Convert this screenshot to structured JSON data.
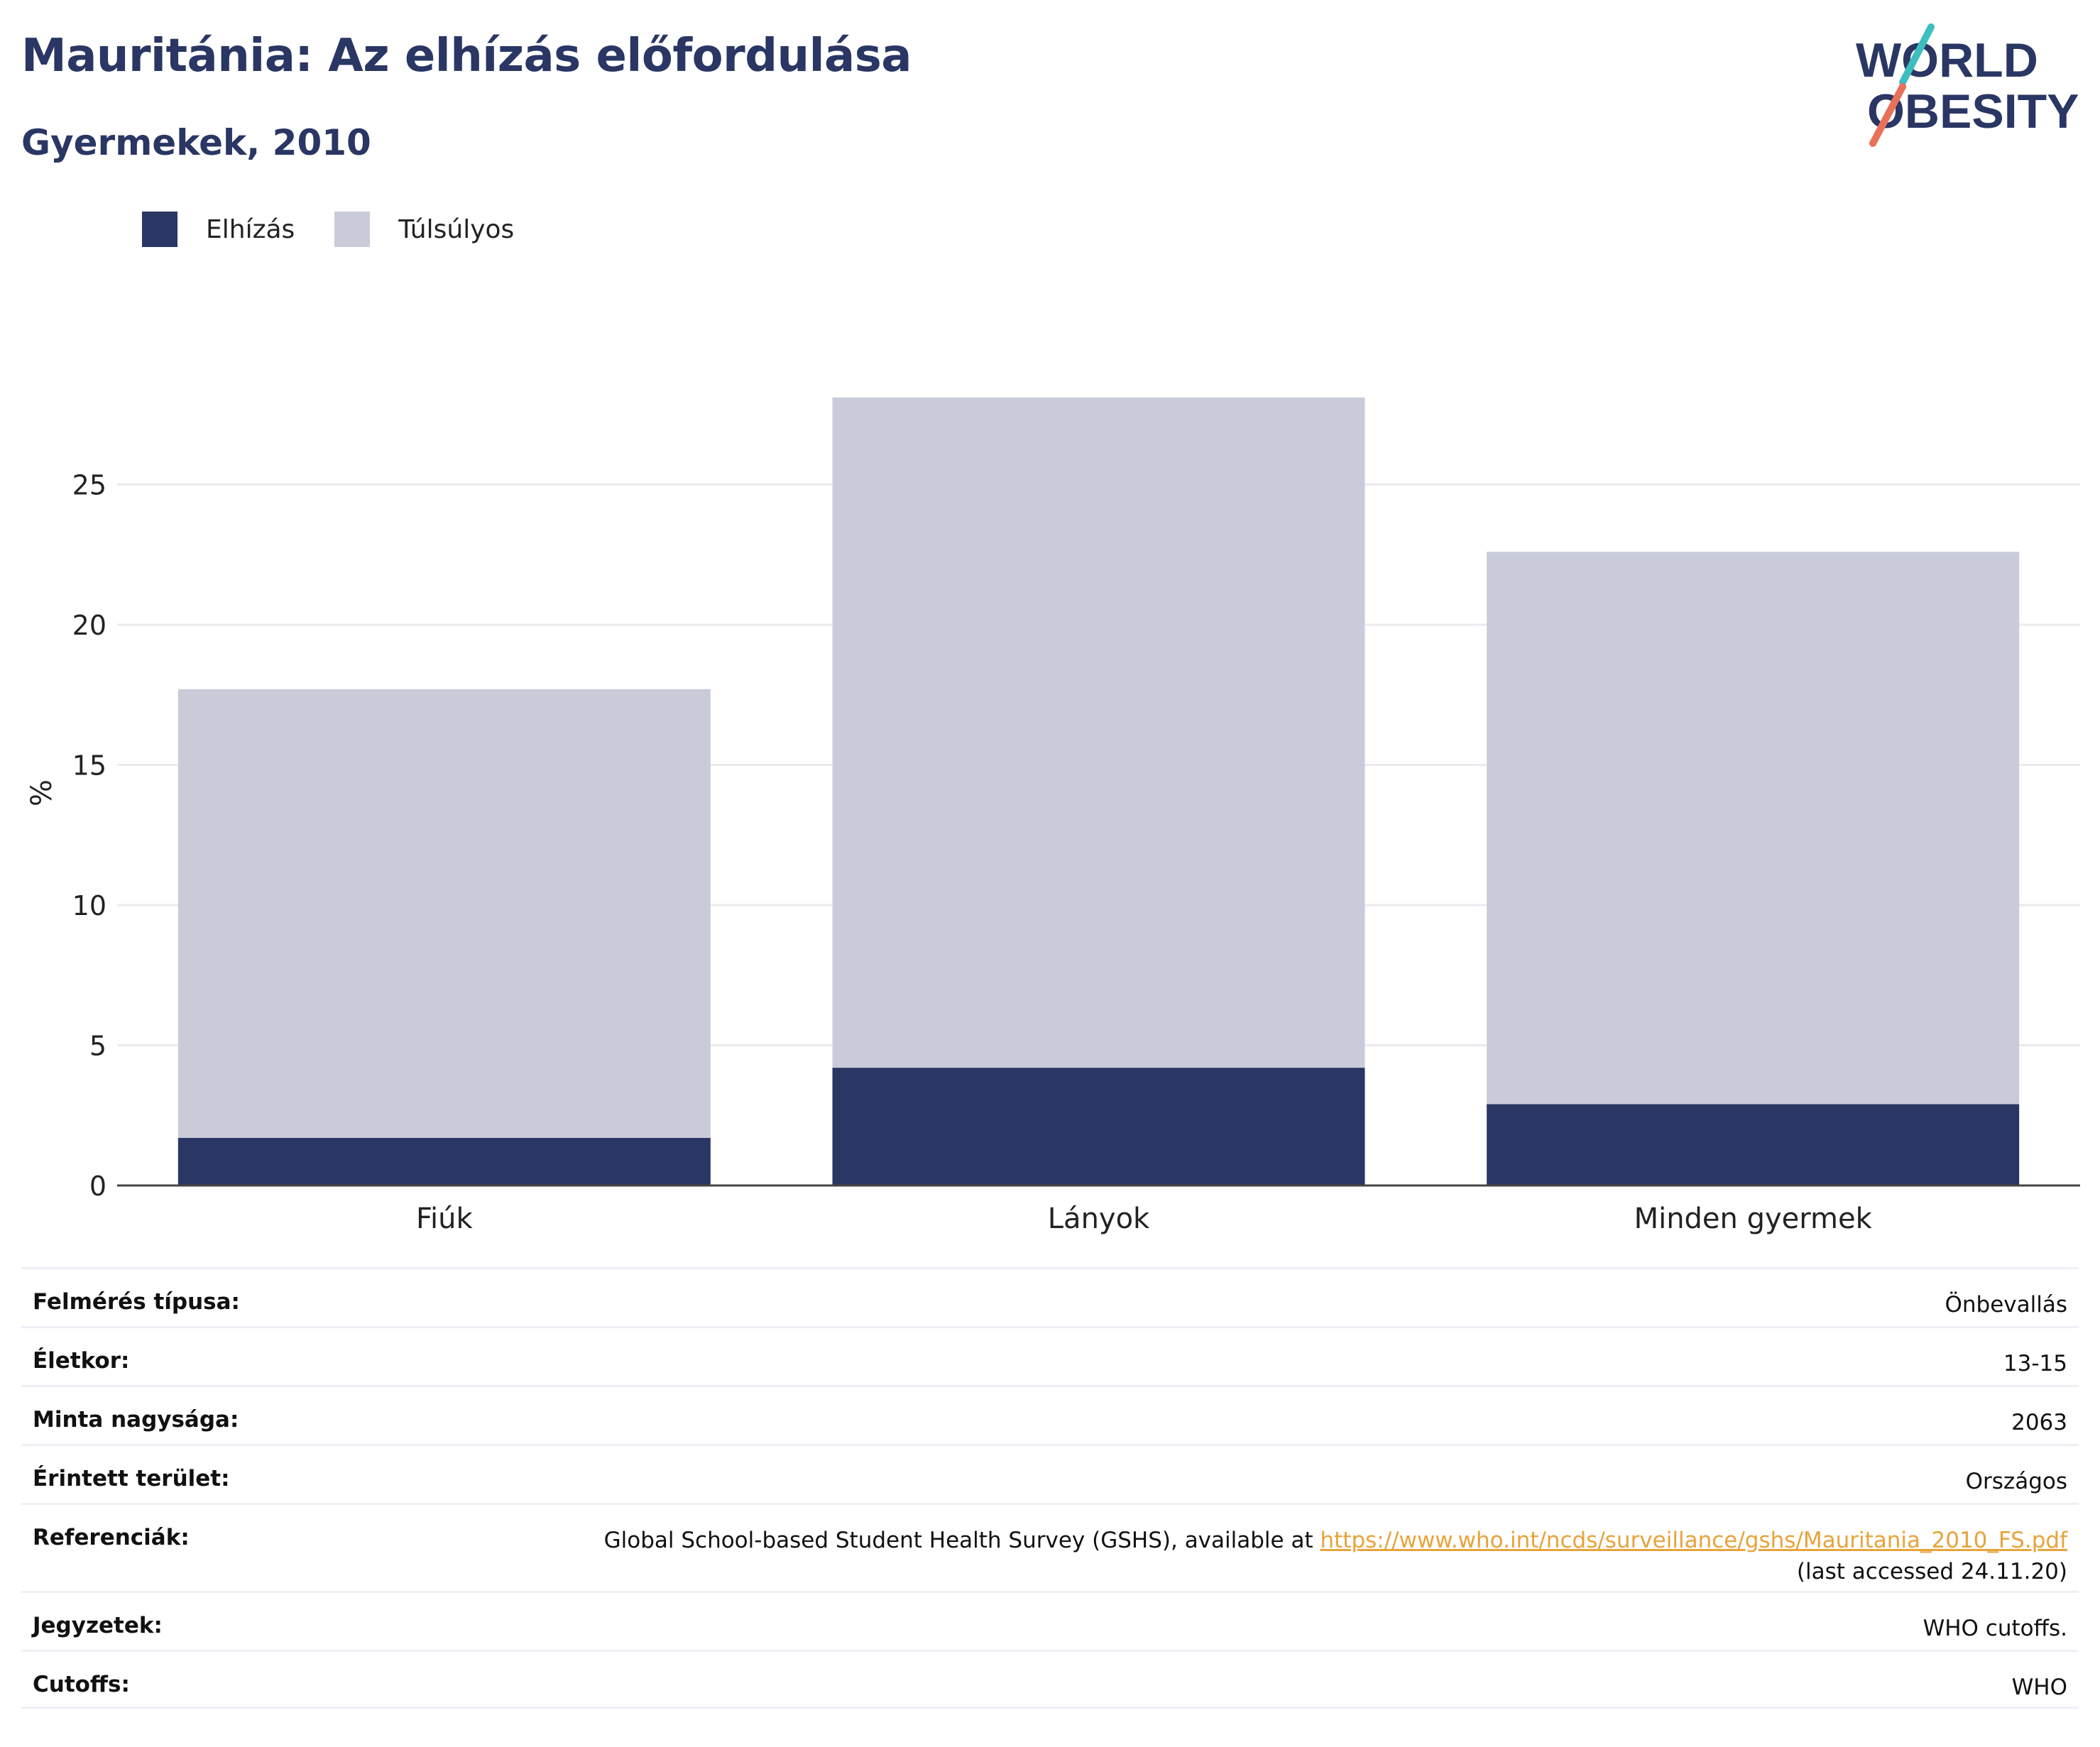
{
  "title": "Mauritánia: Az elhízás előfordulása",
  "subtitle": "Gyermekek, 2010",
  "logo": {
    "line1": "WORLD",
    "line2": "OBESITY"
  },
  "colors": {
    "obesity": "#2a3663",
    "overweight": "#c9ccd8",
    "title": "#2a3663",
    "link": "#e8a33a"
  },
  "chart_data": {
    "type": "bar",
    "stacked": true,
    "categories": [
      "Fiúk",
      "Lányok",
      "Minden gyermek"
    ],
    "series": [
      {
        "name": "Elhízás",
        "values": [
          1.7,
          4.2,
          2.9
        ]
      },
      {
        "name": "Túlsúlyos",
        "values": [
          16.0,
          23.9,
          19.7
        ]
      }
    ],
    "totals": [
      17.7,
      28.1,
      22.6
    ],
    "ylabel": "%",
    "xlabel": "",
    "ylim": [
      0,
      28.1
    ],
    "yticks": [
      0,
      5,
      10,
      15,
      20,
      25
    ],
    "grid": true,
    "legend_position": "top-left"
  },
  "meta": [
    {
      "label": "Felmérés típusa:",
      "value": "Önbevallás"
    },
    {
      "label": "Életkor:",
      "value": "13-15"
    },
    {
      "label": "Minta nagysága:",
      "value": "2063"
    },
    {
      "label": "Érintett terület:",
      "value": "Országos"
    },
    {
      "label": "Referenciák:",
      "value": "Global School-based Student Health Survey (GSHS), available at ",
      "link": "https://www.who.int/ncds/surveillance/gshs/Mauritania_2010_FS.pdf",
      "value2": "(last accessed 24.11.20)"
    },
    {
      "label": "Jegyzetek:",
      "value": "WHO cutoffs."
    },
    {
      "label": "Cutoffs:",
      "value": "WHO"
    }
  ]
}
